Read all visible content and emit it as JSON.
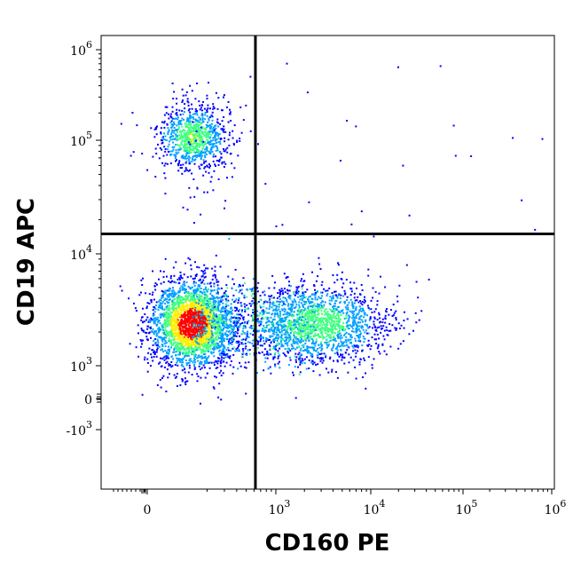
{
  "chart_data": {
    "type": "scatter",
    "title": "",
    "xlabel": "CD160 PE",
    "ylabel": "CD19 APC",
    "x_scale": "biexponential (logicle)",
    "y_scale": "biexponential (logicle)",
    "x_ticks": [
      {
        "value": "0",
        "base": "0",
        "exp": ""
      },
      {
        "value": "10^3",
        "base": "10",
        "exp": "3"
      },
      {
        "value": "10^4",
        "base": "10",
        "exp": "4"
      },
      {
        "value": "10^5",
        "base": "10",
        "exp": "5"
      },
      {
        "value": "10^6",
        "base": "10",
        "exp": "6"
      }
    ],
    "y_ticks": [
      {
        "value": "10^6",
        "base": "10",
        "exp": "6"
      },
      {
        "value": "10^5",
        "base": "10",
        "exp": "5"
      },
      {
        "value": "10^4",
        "base": "10",
        "exp": "4"
      },
      {
        "value": "10^3",
        "base": "10",
        "exp": "3"
      },
      {
        "value": "0",
        "base": "0",
        "exp": ""
      },
      {
        "value": "-10^3",
        "base": "-10",
        "exp": "3"
      }
    ],
    "quadrant_gate": {
      "x": 620,
      "y": 15000
    },
    "populations": [
      {
        "name_visible": false,
        "x_center": 140,
        "y_center": 110000,
        "density": "medium",
        "color": "#1a3cff"
      },
      {
        "name_visible": false,
        "x_center": 140,
        "y_center": 2400,
        "density": "high",
        "color": "#ff2a00"
      },
      {
        "name_visible": false,
        "x_center": 2600,
        "y_center": 2400,
        "density": "medium",
        "color": "#7fff3a"
      }
    ],
    "grid": false,
    "legend": "none",
    "colors": {
      "low": "#0000ff",
      "mid_low": "#00a0ff",
      "mid": "#40ff80",
      "mid_high": "#ffee00",
      "high": "#ff0000",
      "gate_line": "#000000"
    }
  }
}
